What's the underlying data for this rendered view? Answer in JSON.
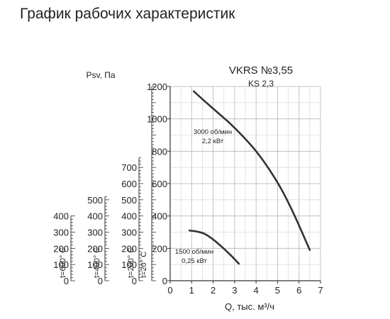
{
  "page_title": "График рабочих характеристик",
  "chart_data": {
    "type": "line",
    "title": "VKRS №3,55",
    "subtitle": "KS 2,3",
    "xlabel": "Q, тыс. м³/ч",
    "ylabel": "Psv, Па",
    "xlim": [
      0,
      7
    ],
    "ylim": [
      0,
      1200
    ],
    "x_ticks": [
      "0",
      "1",
      "2",
      "3",
      "4",
      "5",
      "6",
      "7"
    ],
    "y_ticks": [
      "0",
      "200",
      "400",
      "600",
      "800",
      "1000",
      "1200"
    ],
    "x_minor_step": 0.5,
    "y_minor_step": 100,
    "grid": true,
    "series": [
      {
        "name": "3000 об/мин 2,2 кВт",
        "label_lines": [
          "3000 об/мин",
          "2,2 кВт"
        ],
        "x": [
          1.1,
          1.6,
          2.2,
          2.8,
          3.4,
          4.0,
          4.6,
          5.2,
          5.8,
          6.5
        ],
        "y": [
          1170,
          1110,
          1040,
          970,
          890,
          800,
          690,
          560,
          400,
          190
        ]
      },
      {
        "name": "1500 об/мин 0,25 кВт",
        "label_lines": [
          "1500 об/мин",
          "0,25 кВт"
        ],
        "x": [
          0.9,
          1.2,
          1.6,
          2.0,
          2.4,
          2.8,
          3.2
        ],
        "y": [
          310,
          305,
          290,
          255,
          210,
          160,
          105
        ]
      }
    ],
    "secondary_axes": [
      {
        "label": "t=600° C",
        "max": 400,
        "ticks": [
          "0",
          "100",
          "200",
          "300",
          "400"
        ],
        "minor_step": 20
      },
      {
        "label": "t=400° C",
        "max": 520,
        "ticks": [
          "0",
          "100",
          "200",
          "300",
          "400",
          "500"
        ],
        "minor_step": 20
      },
      {
        "label": "t=200° C",
        "max": 760,
        "ticks": [
          "0",
          "100",
          "200",
          "300",
          "400",
          "500",
          "600",
          "700"
        ],
        "minor_step": 20
      },
      {
        "label": "t=20° C",
        "max": 1200,
        "ticks": [],
        "minor_step": 20
      }
    ]
  }
}
